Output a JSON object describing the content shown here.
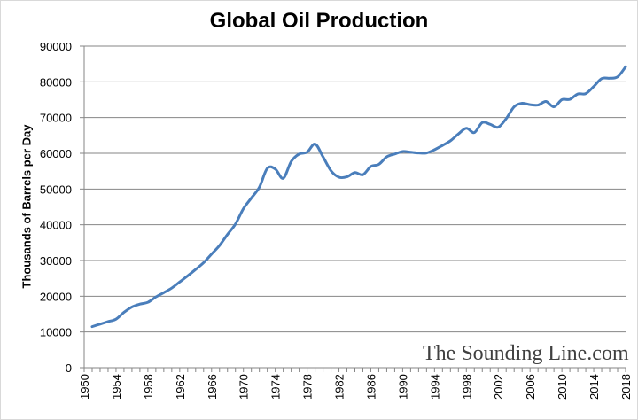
{
  "chart_data": {
    "type": "line",
    "title": "Global Oil Production",
    "xlabel": "",
    "ylabel": "Thousands of Barrels per Day",
    "watermark": "The Sounding Line.com",
    "xlim": [
      1950,
      2018
    ],
    "ylim": [
      0,
      90000
    ],
    "grid": true,
    "legend": "none",
    "line_color": "#4a7ebb",
    "y_ticks": [
      "0",
      "10000",
      "20000",
      "30000",
      "40000",
      "50000",
      "60000",
      "70000",
      "80000",
      "90000"
    ],
    "x_ticks": [
      "1950",
      "1954",
      "1958",
      "1962",
      "1966",
      "1970",
      "1974",
      "1978",
      "1982",
      "1986",
      "1990",
      "1994",
      "1998",
      "2002",
      "2006",
      "2010",
      "2014",
      "2018"
    ],
    "series": [
      {
        "x": [
          1951,
          1952,
          1953,
          1954,
          1955,
          1956,
          1957,
          1958,
          1959,
          1960,
          1961,
          1962,
          1963,
          1964,
          1965,
          1966,
          1967,
          1968,
          1969,
          1970,
          1971,
          1972,
          1973,
          1974,
          1975,
          1976,
          1977,
          1978,
          1979,
          1980,
          1981,
          1982,
          1983,
          1984,
          1985,
          1986,
          1987,
          1988,
          1989,
          1990,
          1991,
          1992,
          1993,
          1994,
          1995,
          1996,
          1997,
          1998,
          1999,
          2000,
          2001,
          2002,
          2003,
          2004,
          2005,
          2006,
          2007,
          2008,
          2009,
          2010,
          2011,
          2012,
          2013,
          2014,
          2015,
          2016,
          2017,
          2018
        ],
        "values": [
          11500,
          12200,
          12900,
          13600,
          15500,
          17000,
          17800,
          18300,
          19800,
          21000,
          22300,
          24000,
          25700,
          27500,
          29400,
          31800,
          34200,
          37300,
          40200,
          44500,
          47500,
          50500,
          55800,
          55600,
          53000,
          57700,
          59800,
          60300,
          62600,
          59000,
          55100,
          53300,
          53400,
          54600,
          54000,
          56300,
          56900,
          59000,
          59800,
          60500,
          60300,
          60100,
          60100,
          61000,
          62200,
          63500,
          65400,
          67000,
          65800,
          68600,
          68100,
          67300,
          69700,
          73000,
          74000,
          73600,
          73500,
          74500,
          73000,
          75000,
          75100,
          76600,
          76700,
          78700,
          80900,
          81000,
          81400,
          84200
        ]
      }
    ]
  }
}
